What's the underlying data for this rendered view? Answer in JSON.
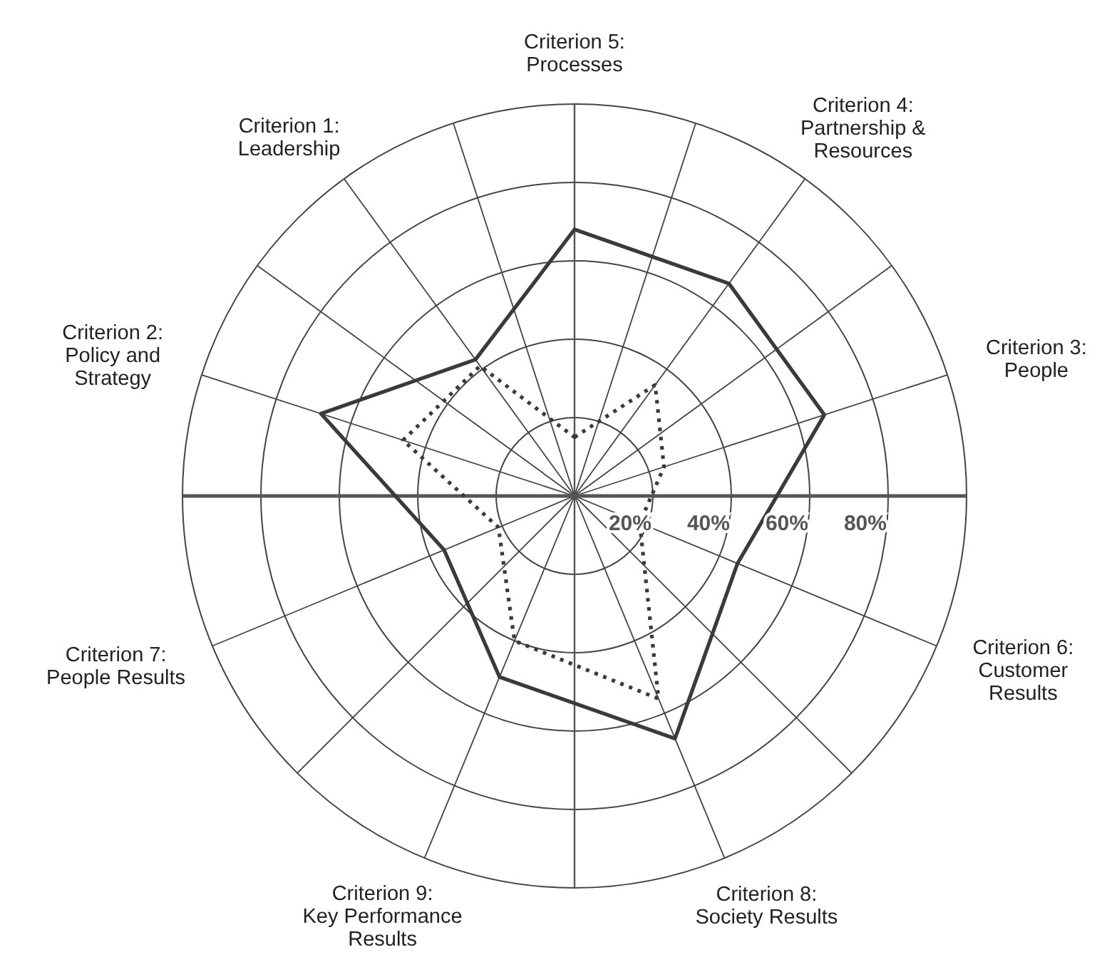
{
  "chart_data": {
    "type": "radar",
    "categories": [
      "Criterion 5: Processes",
      "Criterion 4: Partnership & Resources",
      "Criterion 3: People",
      "Criterion 6: Customer Results",
      "Criterion 8: Society Results",
      "Criterion 9: Key Performance Results",
      "Criterion 7: People Results",
      "Criterion 2: Policy and Strategy",
      "Criterion 1: Leadership"
    ],
    "series": [
      {
        "color": "#3a3a3a",
        "line_style": "solid",
        "values": [
          68,
          67,
          67,
          45,
          67,
          50,
          36,
          68,
          43
        ]
      },
      {
        "color": "#3a3a3a",
        "line_style": "dotted",
        "values": [
          15,
          35,
          24,
          18,
          56,
          40,
          21,
          46,
          41
        ]
      }
    ],
    "ylim": [
      0,
      100
    ],
    "yticks": [
      {
        "value": 20,
        "label": "20%"
      },
      {
        "value": 40,
        "label": "40%"
      },
      {
        "value": 60,
        "label": "60%"
      },
      {
        "value": 80,
        "label": "80%"
      }
    ],
    "grid": true
  }
}
